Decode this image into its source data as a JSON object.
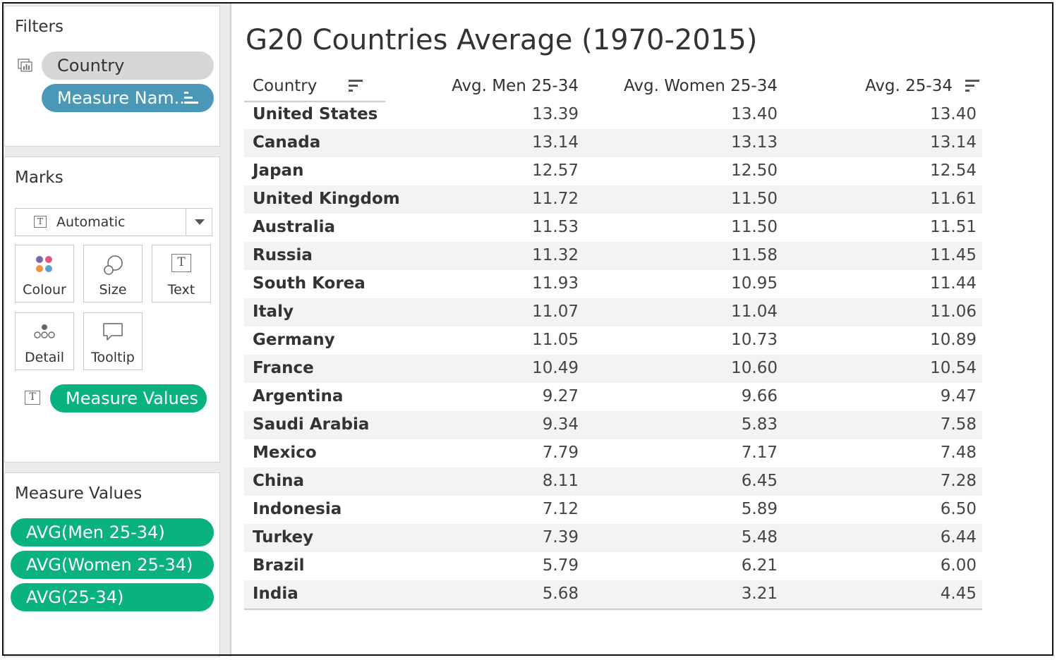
{
  "sidebar": {
    "filters": {
      "title": "Filters",
      "pills": [
        {
          "label": "Country"
        },
        {
          "label": "Measure Nam.."
        }
      ]
    },
    "marks": {
      "title": "Marks",
      "mark_type": "Automatic",
      "tiles": [
        {
          "label": "Colour",
          "icon": "colour-dots-icon"
        },
        {
          "label": "Size",
          "icon": "size-shapes-icon"
        },
        {
          "label": "Text",
          "icon": "text-t-icon"
        },
        {
          "label": "Detail",
          "icon": "detail-dots-icon"
        },
        {
          "label": "Tooltip",
          "icon": "tooltip-bubble-icon"
        }
      ],
      "text_pill": "Measure Values"
    },
    "measure_values": {
      "title": "Measure Values",
      "pills": [
        "AVG(Men 25-34)",
        "AVG(Women 25-34)",
        "AVG(25-34)"
      ]
    }
  },
  "view": {
    "title": "G20 Countries Average (1970-2015)",
    "columns": [
      "Country",
      "Avg. Men 25-34",
      "Avg. Women 25-34",
      "Avg. 25-34"
    ],
    "rows": [
      [
        "United States",
        "13.39",
        "13.40",
        "13.40"
      ],
      [
        "Canada",
        "13.14",
        "13.13",
        "13.14"
      ],
      [
        "Japan",
        "12.57",
        "12.50",
        "12.54"
      ],
      [
        "United Kingdom",
        "11.72",
        "11.50",
        "11.61"
      ],
      [
        "Australia",
        "11.53",
        "11.50",
        "11.51"
      ],
      [
        "Russia",
        "11.32",
        "11.58",
        "11.45"
      ],
      [
        "South Korea",
        "11.93",
        "10.95",
        "11.44"
      ],
      [
        "Italy",
        "11.07",
        "11.04",
        "11.06"
      ],
      [
        "Germany",
        "11.05",
        "10.73",
        "10.89"
      ],
      [
        "France",
        "10.49",
        "10.60",
        "10.54"
      ],
      [
        "Argentina",
        "9.27",
        "9.66",
        "9.47"
      ],
      [
        "Saudi Arabia",
        "9.34",
        "5.83",
        "7.58"
      ],
      [
        "Mexico",
        "7.79",
        "7.17",
        "7.48"
      ],
      [
        "China",
        "8.11",
        "6.45",
        "7.28"
      ],
      [
        "Indonesia",
        "7.12",
        "5.89",
        "6.50"
      ],
      [
        "Turkey",
        "7.39",
        "5.48",
        "6.44"
      ],
      [
        "Brazil",
        "5.79",
        "6.21",
        "6.00"
      ],
      [
        "India",
        "5.68",
        "3.21",
        "4.45"
      ]
    ]
  },
  "colors": {
    "pill_blue": "#4a98b8",
    "pill_green": "#09b27f",
    "pill_grey": "#d6d6d6",
    "row_alt": "#f3f3f3"
  }
}
